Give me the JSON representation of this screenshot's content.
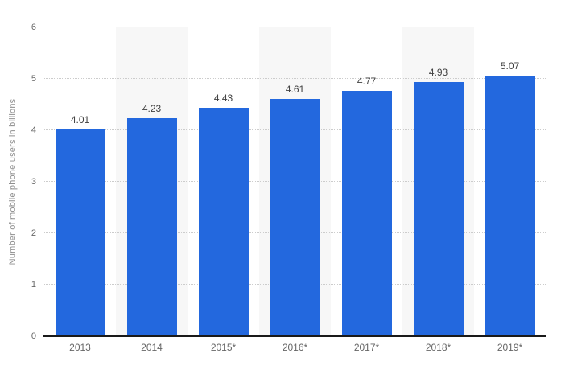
{
  "chart_data": {
    "type": "bar",
    "title": "",
    "xlabel": "",
    "ylabel": "Number of mobile phone users in billions",
    "categories": [
      "2013",
      "2014",
      "2015*",
      "2016*",
      "2017*",
      "2018*",
      "2019*"
    ],
    "values": [
      4.01,
      4.23,
      4.43,
      4.61,
      4.77,
      4.93,
      5.07
    ],
    "value_labels": [
      "4.01",
      "4.23",
      "4.43",
      "4.61",
      "4.77",
      "4.93",
      "5.07"
    ],
    "ylim": [
      0,
      6
    ],
    "yticks": [
      "0",
      "1",
      "2",
      "3",
      "4",
      "5",
      "6"
    ],
    "grid": "horizontal-dotted",
    "legend": "none",
    "bar_color": "#2368de",
    "band_color": "#f7f7f7",
    "banded_category_indexes": [
      1,
      3,
      5
    ],
    "axis_line_color": "#1a1a1a",
    "tick_label_color": "#666666",
    "value_label_color": "#404040",
    "y_title_color": "#8f8f8f"
  }
}
